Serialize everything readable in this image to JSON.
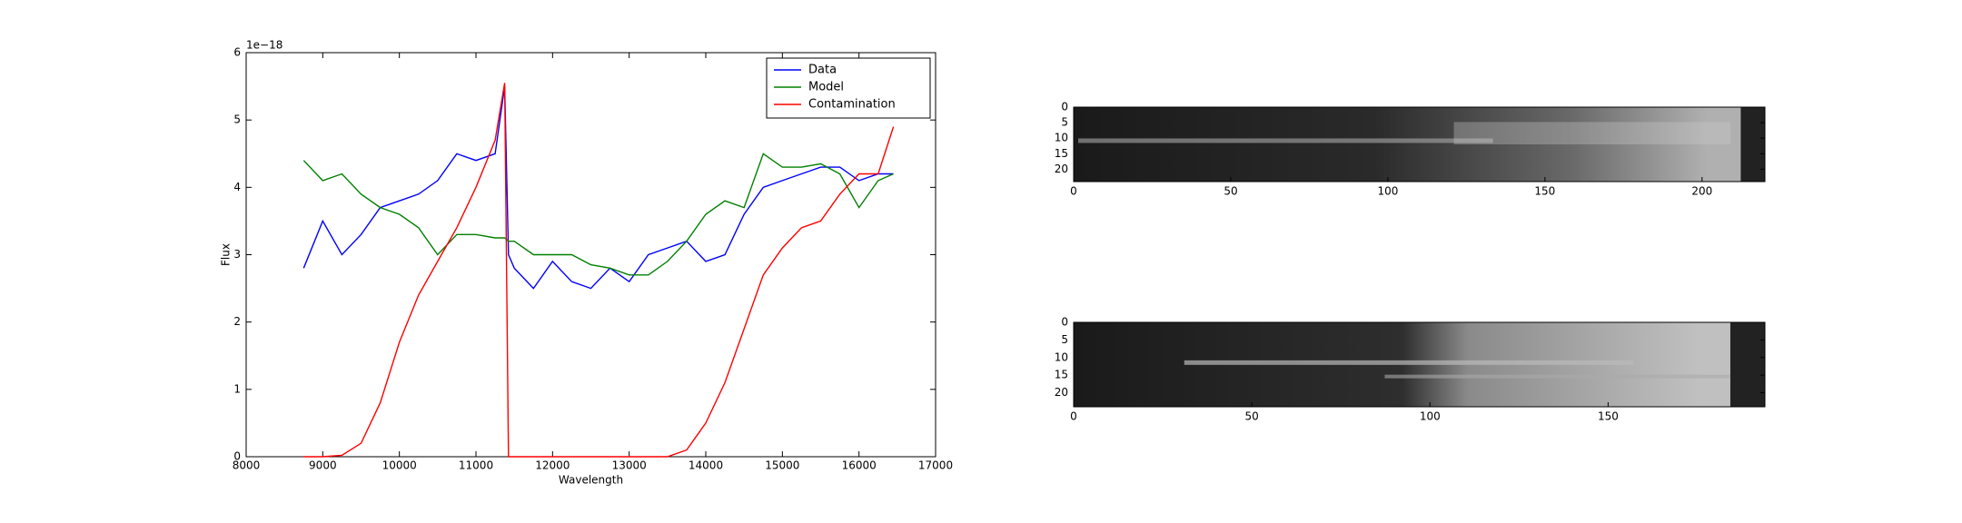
{
  "chart_data": [
    {
      "type": "line",
      "y_label": "Flux",
      "x_label": "Wavelength",
      "y_offset_label": "1e−18",
      "xlim": [
        8000,
        17000
      ],
      "xticks": [
        8000,
        9000,
        10000,
        11000,
        12000,
        13000,
        14000,
        15000,
        16000,
        17000
      ],
      "ylim": [
        0,
        6
      ],
      "yticks": [
        0,
        1,
        2,
        3,
        4,
        5,
        6
      ],
      "legend": "upper right",
      "x": [
        8750,
        9000,
        9250,
        9500,
        9750,
        10000,
        10250,
        10500,
        10750,
        11000,
        11250,
        11375,
        11425,
        11500,
        11750,
        12000,
        12250,
        12500,
        12750,
        13000,
        13250,
        13500,
        13750,
        14000,
        14250,
        14500,
        14750,
        15000,
        15250,
        15500,
        15750,
        16000,
        16250,
        16450
      ],
      "series": [
        {
          "name": "Data",
          "color": "#0000ff",
          "values": [
            2.8,
            3.5,
            3.0,
            3.3,
            3.7,
            3.8,
            3.9,
            4.1,
            4.5,
            4.4,
            4.5,
            5.5,
            3.0,
            2.8,
            2.5,
            2.9,
            2.6,
            2.5,
            2.8,
            2.6,
            3.0,
            3.1,
            3.2,
            2.9,
            3.0,
            3.6,
            4.0,
            4.1,
            4.2,
            4.3,
            4.3,
            4.1,
            4.2,
            4.2
          ]
        },
        {
          "name": "Model",
          "color": "#008000",
          "values": [
            4.4,
            4.1,
            4.2,
            3.9,
            3.7,
            3.6,
            3.4,
            3.0,
            3.3,
            3.3,
            3.25,
            3.25,
            3.2,
            3.2,
            3.0,
            3.0,
            3.0,
            2.85,
            2.8,
            2.7,
            2.7,
            2.9,
            3.2,
            3.6,
            3.8,
            3.7,
            4.5,
            4.3,
            4.3,
            4.35,
            4.2,
            3.7,
            4.1,
            4.2
          ]
        },
        {
          "name": "Contamination",
          "color": "#ff0000",
          "values": [
            0,
            0,
            0.02,
            0.2,
            0.8,
            1.7,
            2.4,
            2.9,
            3.4,
            4.0,
            4.7,
            5.55,
            0,
            0,
            0,
            0,
            0,
            0,
            0,
            0,
            0,
            0,
            0.1,
            0.5,
            1.1,
            1.9,
            2.7,
            3.1,
            3.4,
            3.5,
            3.9,
            4.2,
            4.2,
            4.9
          ]
        }
      ]
    },
    {
      "type": "image",
      "xlim": [
        0,
        220
      ],
      "xticks": [
        0,
        50,
        100,
        150,
        200
      ],
      "ylim": [
        24,
        0
      ],
      "yticks": [
        0,
        5,
        10,
        15,
        20
      ]
    },
    {
      "type": "image",
      "xlim": [
        0,
        194
      ],
      "xticks": [
        0,
        50,
        100,
        150
      ],
      "ylim": [
        24,
        0
      ],
      "yticks": [
        0,
        5,
        10,
        15,
        20
      ]
    }
  ]
}
